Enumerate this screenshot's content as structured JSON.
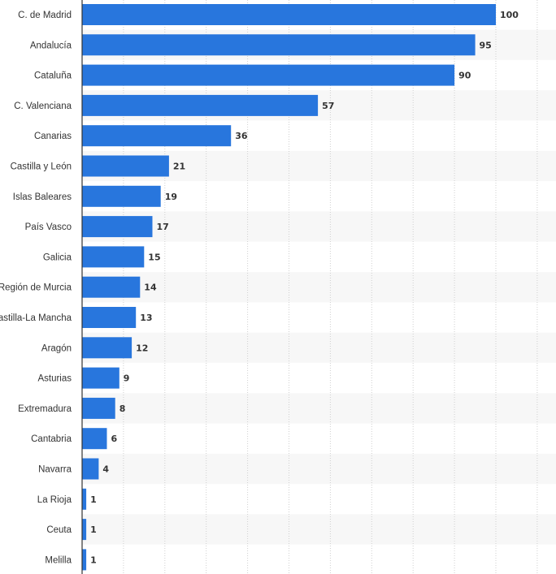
{
  "chart_data": {
    "type": "bar",
    "orientation": "horizontal",
    "title": "",
    "xlabel": "",
    "ylabel": "",
    "xlim": [
      0,
      110
    ],
    "grid": true,
    "categories": [
      "C. de Madrid",
      "Andalucía",
      "Cataluña",
      "C. Valenciana",
      "Canarias",
      "Castilla y León",
      "Islas Baleares",
      "País Vasco",
      "Galicia",
      "Región de Murcia",
      "Castilla-La Mancha",
      "Aragón",
      "Asturias",
      "Extremadura",
      "Cantabria",
      "Navarra",
      "La Rioja",
      "Ceuta",
      "Melilla"
    ],
    "values": [
      100,
      95,
      90,
      57,
      36,
      21,
      19,
      17,
      15,
      14,
      13,
      12,
      9,
      8,
      6,
      4,
      1,
      1,
      1
    ],
    "colors": {
      "bar": "#2876dd",
      "grid": "#cfcfcf",
      "axis": "#333333",
      "band": "#f7f7f7",
      "text": "#333333"
    }
  }
}
